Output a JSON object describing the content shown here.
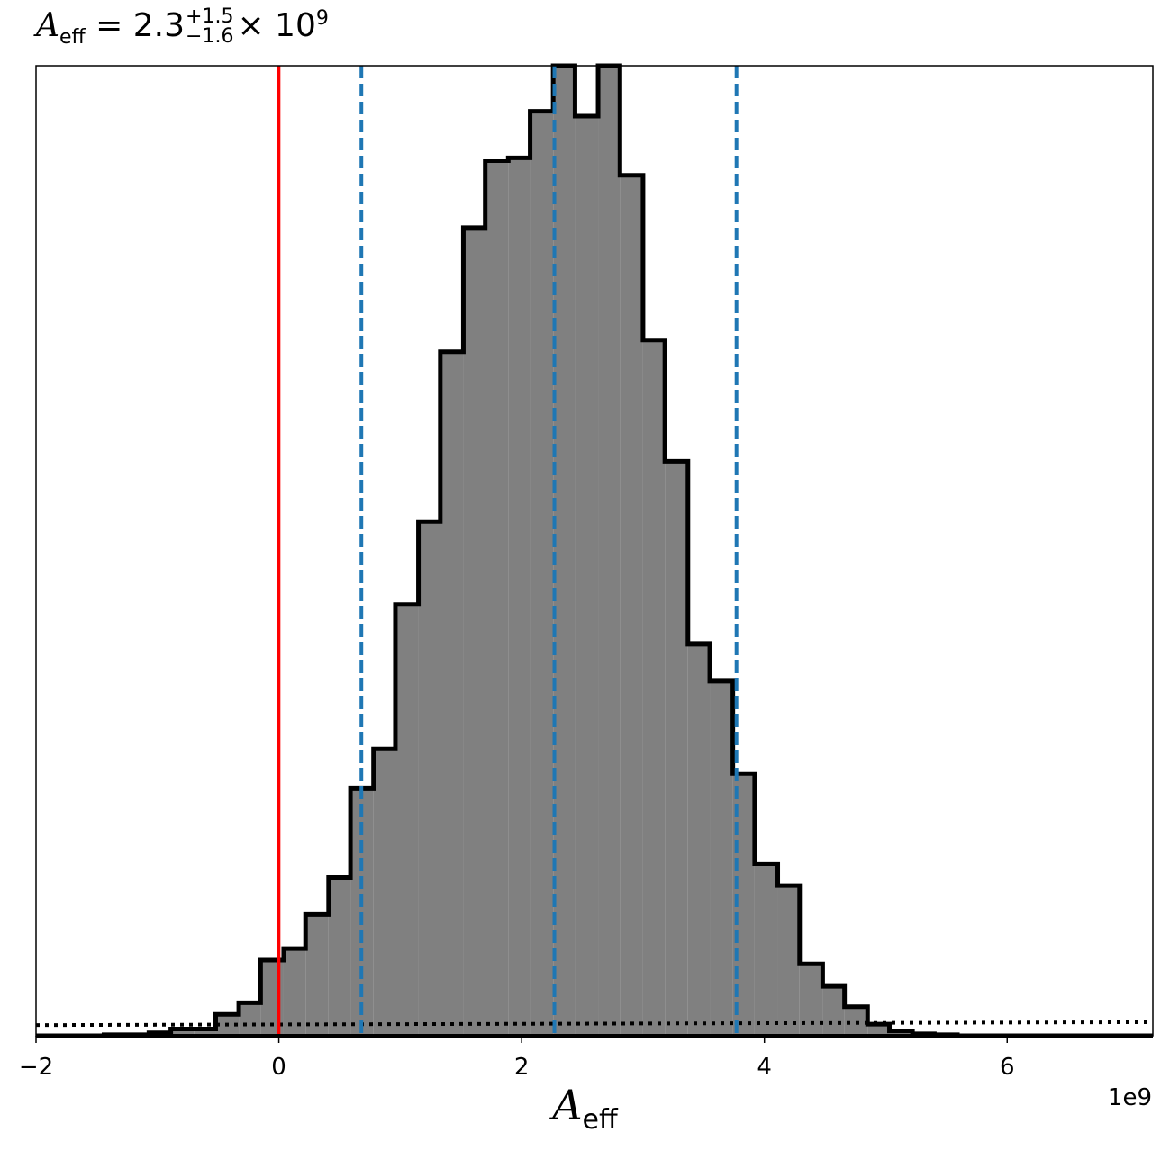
{
  "chart_data": {
    "type": "histogram",
    "title": {
      "symbol": "A",
      "subscript": "eff",
      "equals": "= 2.3",
      "upper_error": "+1.5",
      "lower_error": "−1.6",
      "suffix": "× 10",
      "exponent": "9"
    },
    "xlabel": {
      "symbol": "A",
      "subscript": "eff"
    },
    "x_offset_label": "1e9",
    "xlim": [
      -2,
      7.2
    ],
    "ylim": [
      0,
      1
    ],
    "x_ticks": [
      {
        "value": -2,
        "label": "−2"
      },
      {
        "value": 0,
        "label": "0"
      },
      {
        "value": 2,
        "label": "2"
      },
      {
        "value": 4,
        "label": "4"
      },
      {
        "value": 6,
        "label": "6"
      }
    ],
    "y_ticks_shown": false,
    "bin_edges": [
      -2.0,
      -1.81,
      -1.63,
      -1.44,
      -1.26,
      -1.07,
      -0.89,
      -0.7,
      -0.52,
      -0.33,
      -0.15,
      0.04,
      0.22,
      0.41,
      0.59,
      0.78,
      0.96,
      1.15,
      1.33,
      1.52,
      1.7,
      1.89,
      2.07,
      2.26,
      2.44,
      2.63,
      2.81,
      3.0,
      3.18,
      3.37,
      3.55,
      3.74,
      3.92,
      4.11,
      4.29,
      4.48,
      4.66,
      4.85,
      5.03,
      5.22,
      5.4,
      5.59,
      5.77,
      5.96,
      6.14,
      6.33,
      6.51,
      6.7,
      6.88,
      7.07,
      7.2
    ],
    "bin_heights": [
      0.0,
      0.0,
      0.0,
      0.001,
      0.001,
      0.003,
      0.007,
      0.007,
      0.022,
      0.034,
      0.078,
      0.09,
      0.125,
      0.163,
      0.255,
      0.296,
      0.445,
      0.53,
      0.705,
      0.833,
      0.902,
      0.905,
      0.953,
      1.0,
      0.948,
      1.0,
      0.887,
      0.717,
      0.592,
      0.404,
      0.366,
      0.27,
      0.177,
      0.155,
      0.074,
      0.051,
      0.03,
      0.012,
      0.005,
      0.002,
      0.001,
      0.0,
      0.0,
      0.0,
      0.0,
      0.0,
      0.0,
      0.0,
      0.0,
      0.0
    ],
    "truth_line": {
      "x": 0.0,
      "color": "#ff0000"
    },
    "quantile_lines": {
      "values": [
        0.68,
        2.27,
        3.77
      ],
      "color": "#1f77b4",
      "style": "dashed"
    },
    "prior_line": {
      "y_start": 0.011,
      "y_end": 0.014,
      "style": "dotted",
      "color": "#000000"
    },
    "fill_color": "#808080",
    "edge_color": "#000000",
    "grid": false,
    "legend": "none"
  }
}
